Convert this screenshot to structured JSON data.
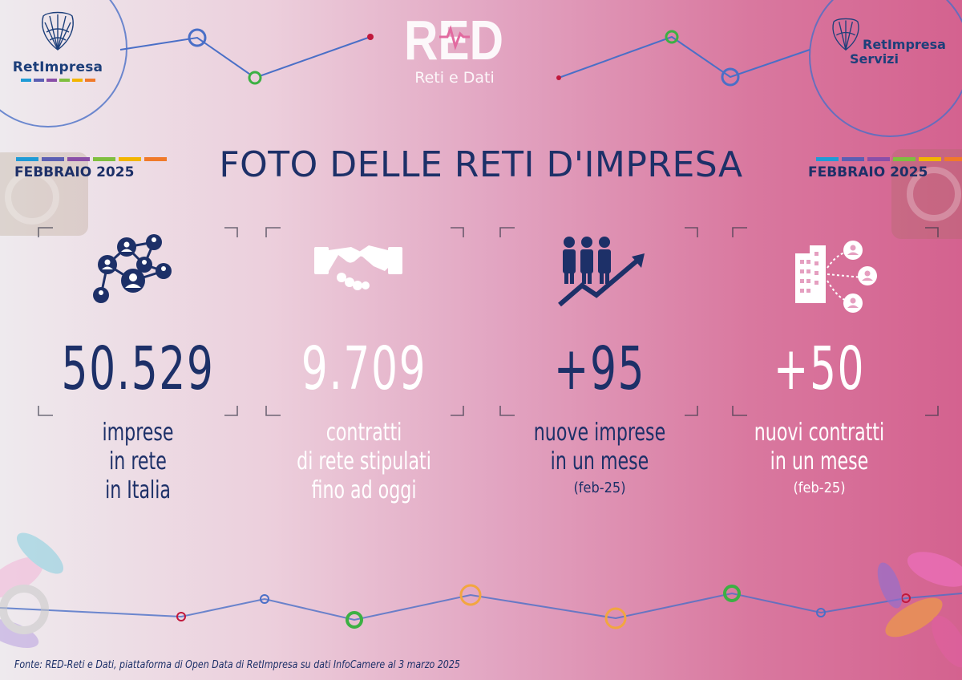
{
  "header": {
    "logo_left_name": "RetImpresa",
    "red_logo_text": "RED",
    "red_logo_tagline": "Reti e Dati",
    "logo_right_line1": "RetImpresa",
    "logo_right_line2": "Servizi"
  },
  "title": "FOTO DELLE RETI D'IMPRESA",
  "date_left": "FEBBRAIO 2025",
  "date_right": "FEBBRAIO  2025",
  "stats": [
    {
      "number": "50.529",
      "label_lines": [
        "imprese",
        "in rete",
        "in Italia"
      ],
      "sub": "",
      "icon": "network-people-icon"
    },
    {
      "number": "9.709",
      "label_lines": [
        "contratti",
        "di rete stipulati",
        "fino ad oggi"
      ],
      "sub": "",
      "icon": "handshake-icon"
    },
    {
      "number": "+95",
      "label_lines": [
        "nuove imprese",
        "in un mese"
      ],
      "sub": "(feb-25)",
      "icon": "people-growth-icon"
    },
    {
      "number": "+50",
      "label_lines": [
        "nuovi contratti",
        "in un mese"
      ],
      "sub": "(feb-25)",
      "icon": "building-connections-icon"
    }
  ],
  "source": "Fonte: RED-Reti e Dati, piattaforma di Open Data di RetImpresa su dati InfoCamere al 3 marzo 2025",
  "colors": {
    "navy": "#1d3068",
    "white": "#ffffff",
    "pink": "#d4628f",
    "brand_bars": [
      "#1f9bd6",
      "#5b5fb3",
      "#8a4fa8",
      "#7fbf3f",
      "#f2b500",
      "#f07a2a"
    ]
  }
}
